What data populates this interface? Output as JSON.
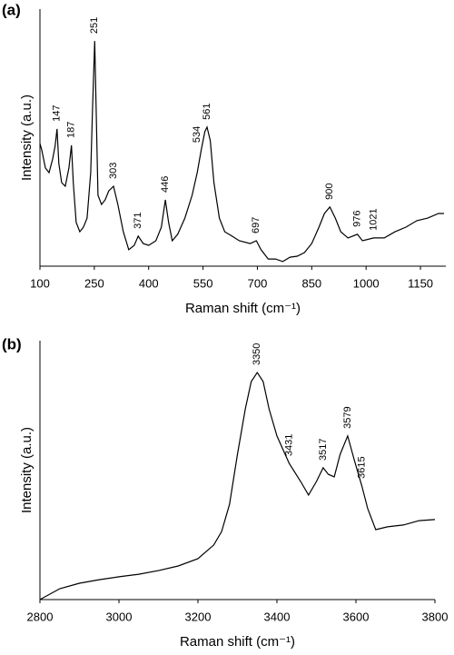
{
  "chart_data": [
    {
      "type": "line",
      "panel_label": "(a)",
      "ylabel": "Intensity (a.u.)",
      "xlabel": "Raman shift (cm⁻¹)",
      "color": "#000000",
      "xlim": [
        100,
        1220
      ],
      "xticks": [
        100,
        250,
        400,
        550,
        700,
        850,
        1000,
        1150
      ],
      "ylim": [
        0,
        100
      ],
      "x": [
        100,
        105,
        115,
        125,
        135,
        142,
        147,
        152,
        160,
        170,
        180,
        187,
        192,
        200,
        210,
        220,
        230,
        240,
        245,
        251,
        255,
        260,
        270,
        280,
        290,
        303,
        315,
        330,
        345,
        360,
        371,
        385,
        400,
        420,
        435,
        446,
        455,
        465,
        480,
        500,
        520,
        534,
        545,
        555,
        561,
        570,
        580,
        595,
        610,
        630,
        650,
        680,
        697,
        710,
        730,
        750,
        770,
        790,
        810,
        830,
        850,
        870,
        885,
        900,
        915,
        930,
        950,
        976,
        990,
        1021,
        1050,
        1080,
        1110,
        1140,
        1170,
        1200,
        1215
      ],
      "values": [
        47.7,
        45.2,
        38.2,
        36.4,
        41.7,
        47.0,
        53.4,
        39.9,
        32.5,
        31.1,
        38.2,
        47.0,
        32.5,
        17.0,
        13.4,
        15.2,
        18.7,
        36.4,
        61.1,
        87.6,
        61.1,
        27.6,
        24.0,
        25.8,
        29.3,
        31.1,
        24.0,
        13.4,
        6.4,
        8.1,
        11.7,
        8.8,
        8.1,
        9.9,
        15.2,
        25.8,
        17.0,
        9.9,
        12.4,
        18.7,
        27.6,
        36.4,
        45.2,
        52.3,
        54.1,
        48.8,
        32.5,
        18.7,
        13.4,
        11.7,
        9.9,
        8.8,
        9.9,
        6.4,
        2.8,
        2.8,
        1.8,
        3.5,
        3.9,
        5.3,
        8.8,
        15.2,
        20.5,
        23.0,
        18.7,
        13.4,
        11.0,
        12.4,
        9.9,
        11.0,
        11.0,
        13.4,
        15.2,
        17.7,
        18.7,
        20.5,
        20.5
      ],
      "peaks": [
        147,
        187,
        251,
        303,
        371,
        446,
        534,
        561,
        697,
        900,
        976,
        1021
      ]
    },
    {
      "type": "line",
      "panel_label": "(b)",
      "ylabel": "Intensity (a.u.)",
      "xlabel": "Raman shift (cm⁻¹)",
      "color": "#000000",
      "xlim": [
        2800,
        3800
      ],
      "xticks": [
        2800,
        3000,
        3200,
        3400,
        3600,
        3800
      ],
      "ylim": [
        0,
        100
      ],
      "x": [
        2800,
        2850,
        2900,
        2950,
        3000,
        3050,
        3100,
        3150,
        3200,
        3240,
        3260,
        3280,
        3300,
        3320,
        3335,
        3350,
        3365,
        3380,
        3400,
        3431,
        3460,
        3480,
        3500,
        3517,
        3530,
        3545,
        3560,
        3579,
        3595,
        3615,
        3630,
        3650,
        3680,
        3720,
        3760,
        3800
      ],
      "values": [
        0,
        4.2,
        6.3,
        7.7,
        8.8,
        9.8,
        11.2,
        13.0,
        15.8,
        21.1,
        26.3,
        36.8,
        56.1,
        73.7,
        84.2,
        87.7,
        84.2,
        73.7,
        63.2,
        52.6,
        45.6,
        40.4,
        45.6,
        50.9,
        48.4,
        47.4,
        56.1,
        63.2,
        54.4,
        43.9,
        35.1,
        27.0,
        28.1,
        28.8,
        30.5,
        30.9
      ],
      "peaks": [
        3350,
        3431,
        3517,
        3579,
        3615
      ]
    }
  ]
}
